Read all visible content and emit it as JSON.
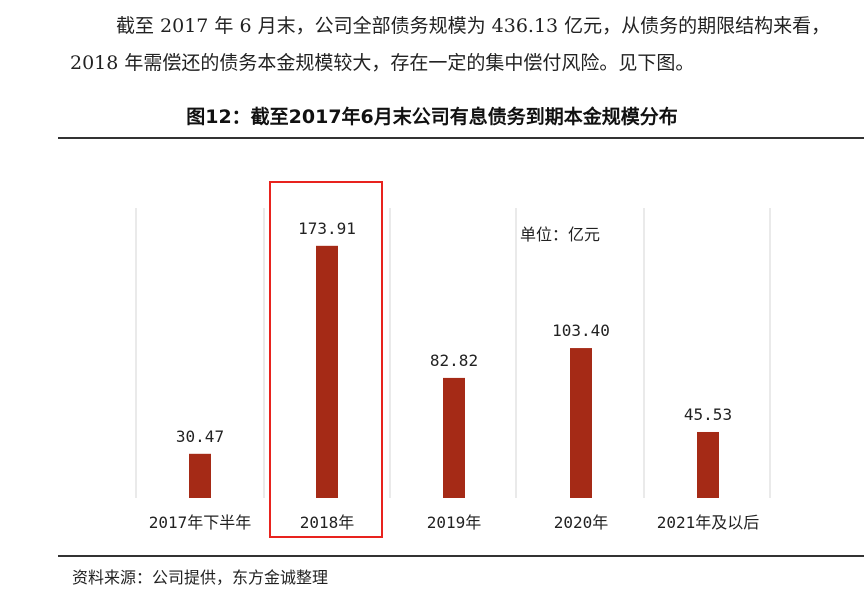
{
  "intro_text": "截至 2017 年 6 月末，公司全部债务规模为 436.13 亿元，从债务的期限结构来看，2018 年需偿还的债务本金规模较大，存在一定的集中偿付风险。见下图。",
  "figure_title": "图12：截至2017年6月末公司有息债务到期本金规模分布",
  "source_note": "资料来源：公司提供，东方金诚整理",
  "chart_data": {
    "type": "bar",
    "title": "截至2017年6月末公司有息债务到期本金规模分布",
    "unit_label": "单位：亿元",
    "categories": [
      "2017年下半年",
      "2018年",
      "2019年",
      "2020年",
      "2021年及以后"
    ],
    "values": [
      30.47,
      173.91,
      82.82,
      103.4,
      45.53
    ],
    "value_labels": [
      "30.47",
      "173.91",
      "82.82",
      "103.40",
      "45.53"
    ],
    "ylim": [
      0,
      200
    ],
    "highlighted_category": "2018年",
    "bar_color": "#A52A16",
    "highlight_color": "#E8231E",
    "grid": false,
    "xlabel": "",
    "ylabel": ""
  }
}
